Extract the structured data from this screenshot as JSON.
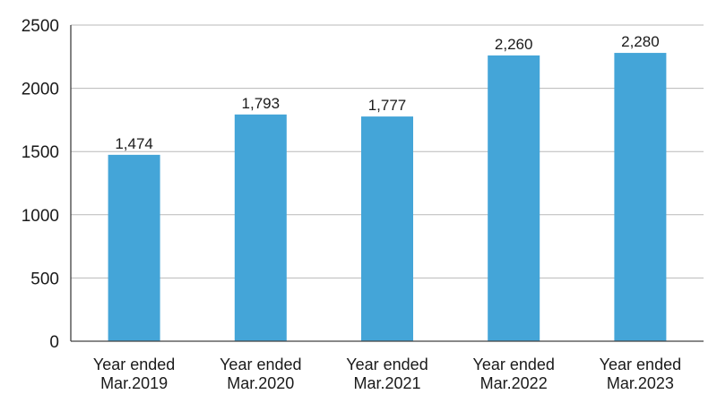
{
  "chart_data": {
    "type": "bar",
    "categories": [
      [
        "Year ended",
        "Mar.2019"
      ],
      [
        "Year ended",
        "Mar.2020"
      ],
      [
        "Year ended",
        "Mar.2021"
      ],
      [
        "Year ended",
        "Mar.2022"
      ],
      [
        "Year ended",
        "Mar.2023"
      ]
    ],
    "values": [
      1474,
      1793,
      1777,
      2260,
      2280
    ],
    "data_labels": [
      "1,474",
      "1,793",
      "1,777",
      "2,260",
      "2,280"
    ],
    "y_ticks": [
      0,
      500,
      1000,
      1500,
      2000,
      2500
    ],
    "ylim": [
      0,
      2500
    ],
    "grid": true,
    "legend": "none",
    "title": "",
    "xlabel": "",
    "ylabel": "",
    "colors": {
      "bar": "#44a5d8",
      "grid": "#b9b9b9",
      "axis": "#404040",
      "text": "#1a1a1a"
    }
  }
}
